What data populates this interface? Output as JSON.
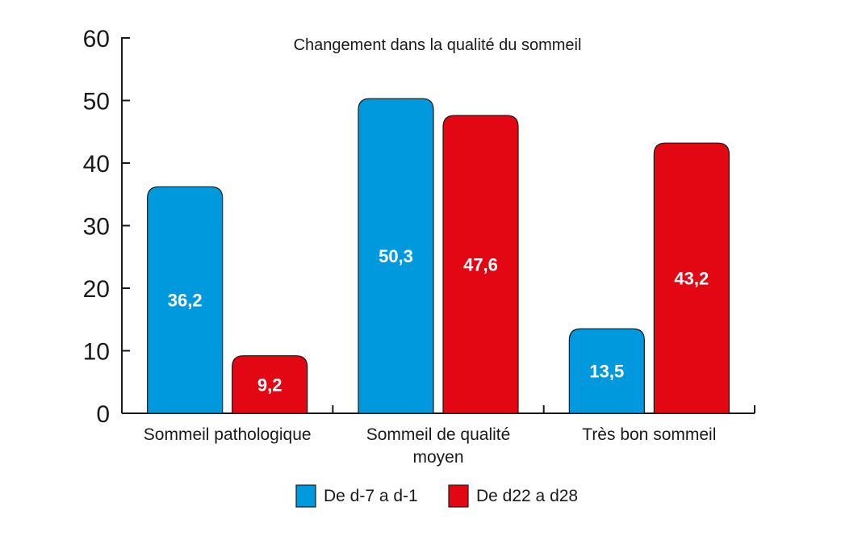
{
  "chart_data": {
    "type": "bar",
    "title": "Changement dans la qualité du sommeil",
    "categories": [
      [
        "Sommeil pathologique"
      ],
      [
        "Sommeil de qualité",
        "moyen"
      ],
      [
        "Très bon sommeil"
      ]
    ],
    "series": [
      {
        "name": "De d-7 a d-1",
        "color": "#0099dd",
        "values": [
          36.2,
          50.3,
          13.5
        ],
        "labels": [
          "36,2",
          "50,3",
          "13,5"
        ]
      },
      {
        "name": "De d22 a d28",
        "color": "#e30613",
        "values": [
          9.2,
          47.6,
          43.2
        ],
        "labels": [
          "9,2",
          "47,6",
          "43,2"
        ]
      }
    ],
    "yticks": [
      "0",
      "10",
      "20",
      "30",
      "40",
      "50",
      "60"
    ],
    "ylim": [
      0,
      60
    ],
    "grid": false,
    "legend_position": "bottom-center"
  }
}
